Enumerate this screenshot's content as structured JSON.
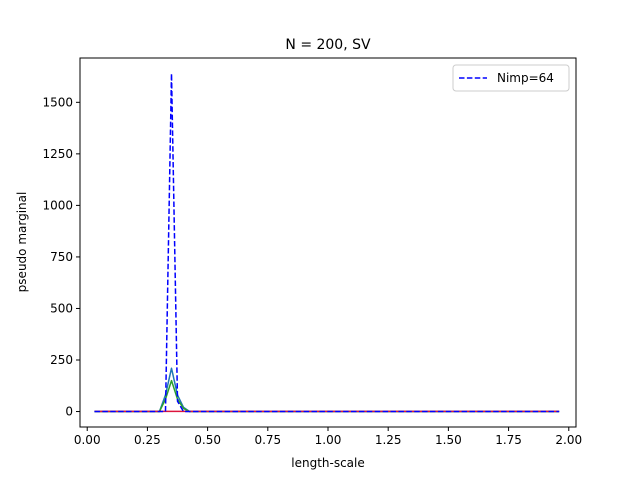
{
  "chart_data": {
    "type": "line",
    "title": "N = 200, SV",
    "xlabel": "length-scale",
    "ylabel": "pseudo marginal",
    "xlim": [
      -0.03,
      2.03
    ],
    "ylim": [
      -75,
      1715
    ],
    "xticks": [
      0.0,
      0.25,
      0.5,
      0.75,
      1.0,
      1.25,
      1.5,
      1.75,
      2.0
    ],
    "xtick_labels": [
      "0.00",
      "0.25",
      "0.50",
      "0.75",
      "1.00",
      "1.25",
      "1.50",
      "1.75",
      "2.00"
    ],
    "yticks": [
      0,
      250,
      500,
      750,
      1000,
      1250,
      1500
    ],
    "ytick_labels": [
      "0",
      "250",
      "500",
      "750",
      "1000",
      "1250",
      "1500"
    ],
    "legend_position": "top-right",
    "grid": false,
    "series": [
      {
        "name": "Nimp=64",
        "color": "#0000ff",
        "style": "dashed",
        "in_legend": true,
        "x": [
          0.03,
          0.3,
          0.325,
          0.35,
          0.375,
          0.4,
          0.425,
          1.96
        ],
        "y": [
          0,
          0,
          0,
          1640,
          50,
          0,
          0,
          0
        ]
      },
      {
        "name": "",
        "color": "#1f77b4",
        "style": "solid",
        "in_legend": false,
        "x": [
          0.03,
          0.3,
          0.325,
          0.35,
          0.375,
          0.4,
          0.425,
          1.96
        ],
        "y": [
          0,
          0,
          80,
          210,
          80,
          20,
          0,
          0
        ]
      },
      {
        "name": "",
        "color": "#2ca02c",
        "style": "solid",
        "in_legend": false,
        "x": [
          0.03,
          0.3,
          0.325,
          0.35,
          0.375,
          0.4,
          0.425,
          1.96
        ],
        "y": [
          0,
          0,
          60,
          150,
          60,
          15,
          0,
          0
        ]
      },
      {
        "name": "",
        "color": "#dc143c",
        "style": "solid",
        "in_legend": false,
        "x": [
          0.03,
          1.96
        ],
        "y": [
          1,
          1
        ]
      }
    ]
  }
}
